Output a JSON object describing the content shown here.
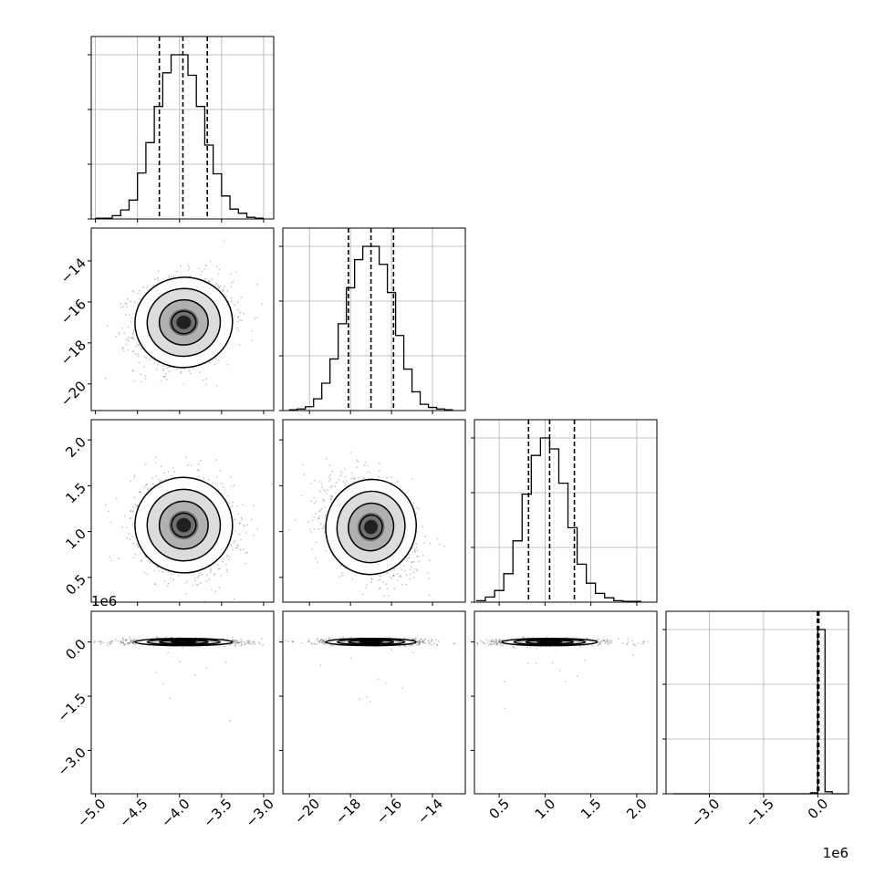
{
  "chart_data": {
    "type": "corner",
    "title": "",
    "variables": [
      {
        "index": 0,
        "range": [
          -5.05,
          -2.88
        ],
        "ticks": [
          -5.0,
          -4.5,
          -4.0,
          -3.5,
          -3.0
        ],
        "tick_labels": [
          "−5.0",
          "−4.5",
          "−4.0",
          "−3.5",
          "−3.0"
        ],
        "offset_label": ""
      },
      {
        "index": 1,
        "range": [
          -21.3,
          -12.4
        ],
        "ticks": [
          -20,
          -18,
          -16,
          -14
        ],
        "tick_labels": [
          "−20",
          "−18",
          "−16",
          "−14"
        ],
        "offset_label": ""
      },
      {
        "index": 2,
        "range": [
          0.23,
          2.22
        ],
        "ticks": [
          0.5,
          1.0,
          1.5,
          2.0
        ],
        "tick_labels": [
          "0.5",
          "1.0",
          "1.5",
          "2.0"
        ],
        "offset_label": ""
      },
      {
        "index": 3,
        "range": [
          -4.2,
          0.85
        ],
        "ticks": [
          -3.0,
          -1.5,
          0.0
        ],
        "tick_labels": [
          "−3.0",
          "−1.5",
          "0.0"
        ],
        "offset_label": "1e6"
      }
    ],
    "histograms": [
      {
        "variable": 0,
        "bin_edges": [
          -5.0,
          -4.9,
          -4.8,
          -4.7,
          -4.6,
          -4.5,
          -4.4,
          -4.3,
          -4.2,
          -4.1,
          -4.0,
          -3.9,
          -3.8,
          -3.7,
          -3.6,
          -3.5,
          -3.4,
          -3.3,
          -3.2,
          -3.1,
          -3.0
        ],
        "counts": [
          1,
          1,
          4,
          11,
          23,
          56,
          93,
          137,
          178,
          200,
          200,
          175,
          137,
          90,
          55,
          28,
          12,
          7,
          2,
          1
        ],
        "quantiles": [
          -4.24,
          -3.96,
          -3.67
        ]
      },
      {
        "variable": 1,
        "bin_edges": [
          -21.0,
          -20.6,
          -20.2,
          -19.8,
          -19.4,
          -19.0,
          -18.6,
          -18.2,
          -17.8,
          -17.4,
          -17.0,
          -16.6,
          -16.2,
          -15.8,
          -15.4,
          -15.0,
          -14.6,
          -14.2,
          -13.8,
          -13.4,
          -13.0
        ],
        "counts": [
          1,
          2,
          5,
          15,
          35,
          66,
          111,
          157,
          193,
          210,
          210,
          187,
          151,
          96,
          53,
          24,
          8,
          4,
          2,
          1
        ],
        "quantiles": [
          -18.1,
          -17.0,
          -15.9
        ]
      },
      {
        "variable": 2,
        "bin_edges": [
          0.25,
          0.35,
          0.45,
          0.55,
          0.65,
          0.75,
          0.85,
          0.95,
          1.05,
          1.15,
          1.25,
          1.35,
          1.45,
          1.55,
          1.65,
          1.75,
          1.85,
          1.95,
          2.05
        ],
        "counts": [
          2,
          7,
          16,
          39,
          84,
          148,
          201,
          225,
          210,
          163,
          102,
          52,
          26,
          12,
          6,
          2,
          1,
          1
        ],
        "quantiles": [
          0.82,
          1.05,
          1.32
        ]
      },
      {
        "variable": 3,
        "bin_edges": [
          -4.0,
          -3.8,
          -3.6,
          -3.4,
          -3.2,
          -3.0,
          -2.8,
          -2.6,
          -2.4,
          -2.2,
          -2.0,
          -1.8,
          -1.6,
          -1.4,
          -1.2,
          -1.0,
          -0.8,
          -0.6,
          -0.4,
          -0.2,
          0.0,
          0.2,
          0.4,
          0.6,
          0.8
        ],
        "counts": [
          0,
          0,
          0,
          0,
          0,
          0,
          0,
          0,
          0,
          0,
          0,
          0,
          0,
          0,
          0,
          0,
          0,
          0,
          0,
          2,
          330,
          4,
          0,
          0
        ],
        "quantiles": [
          -0.01,
          0.01,
          0.03
        ]
      }
    ],
    "pairs": [
      {
        "x": 0,
        "y": 1,
        "center": [
          -3.95,
          -17.0
        ],
        "sd": [
          0.29,
          1.1
        ],
        "corr": 0.12
      },
      {
        "x": 0,
        "y": 2,
        "center": [
          -3.95,
          1.07
        ],
        "sd": [
          0.29,
          0.26
        ],
        "corr": -0.12
      },
      {
        "x": 1,
        "y": 2,
        "center": [
          -17.0,
          1.05
        ],
        "sd": [
          1.1,
          0.26
        ],
        "corr": -0.35
      },
      {
        "x": 0,
        "y": 3,
        "center": [
          -3.95,
          0.0
        ],
        "sd": [
          0.29,
          0.05
        ],
        "corr": 0.0
      },
      {
        "x": 1,
        "y": 3,
        "center": [
          -17.0,
          0.0
        ],
        "sd": [
          1.1,
          0.05
        ],
        "corr": 0.0
      },
      {
        "x": 2,
        "y": 3,
        "center": [
          1.05,
          0.0
        ],
        "sd": [
          0.26,
          0.05
        ],
        "corr": 0.0
      }
    ],
    "contour_levels_sigma": [
      0.5,
      1.0,
      1.5,
      2.0
    ],
    "grid": true,
    "colors": {
      "line": "#000000",
      "grid": "#b0b0b0",
      "points": "#000000"
    }
  }
}
